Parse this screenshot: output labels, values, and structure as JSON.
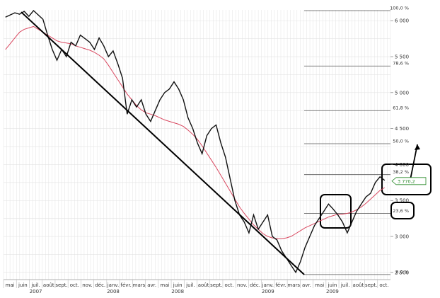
{
  "chart_data": {
    "type": "line",
    "title": "",
    "xlabel": "",
    "ylabel": "",
    "ylim": [
      2400,
      6150
    ],
    "grid": true,
    "colors": {
      "price": "#111111",
      "moving_average": "#d9475f",
      "fib_lines": "#555555",
      "trendline": "#000000",
      "grid": "#e3e3e3",
      "current_price_label": "#2a8a2a",
      "boxes": "#000000"
    },
    "x_labels": [
      "mai",
      "juin",
      "juil.",
      "août",
      "sept.",
      "oct.",
      "nov.",
      "déc.",
      "janv.",
      "févr.",
      "mars",
      "avr.",
      "mai",
      "juin",
      "juil.",
      "août",
      "sept.",
      "oct.",
      "nov.",
      "déc.",
      "janv.",
      "févr.",
      "mars",
      "avr.",
      "mai",
      "juin",
      "juil.",
      "août",
      "sept.",
      "oct."
    ],
    "year_labels": [
      "2007",
      "2008",
      "2008",
      "2009",
      "2009"
    ],
    "y_ticks": [
      {
        "value": 6000,
        "label": "6 000"
      },
      {
        "value": 5500,
        "label": "5 500"
      },
      {
        "value": 5000,
        "label": "5 000"
      },
      {
        "value": 4500,
        "label": "4 500"
      },
      {
        "value": 4000,
        "label": "4 000"
      },
      {
        "value": 3500,
        "label": "3 500"
      },
      {
        "value": 3000,
        "label": "3 000"
      },
      {
        "value": 2500,
        "label": "2 500"
      }
    ],
    "fib_levels": [
      {
        "value": 6140,
        "label": "100,0 %"
      },
      {
        "value": 5370,
        "label": "78,6 %"
      },
      {
        "value": 4750,
        "label": "61,8 %"
      },
      {
        "value": 4290,
        "label": "50,0 %"
      },
      {
        "value": 3860,
        "label": "38,2 %"
      },
      {
        "value": 3320,
        "label": "23,6 %"
      },
      {
        "value": 2470,
        "label": "0,0 %"
      }
    ],
    "current_price_label": "3 770,2",
    "series": [
      {
        "values": [
          6050,
          6080,
          6110,
          6090,
          6130,
          6060,
          6140,
          6080,
          6020,
          5800,
          5600,
          5450,
          5600,
          5500,
          5700,
          5650,
          5800,
          5750,
          5700,
          5600,
          5760,
          5650,
          5500,
          5580,
          5400,
          5200,
          4700,
          4900,
          4800,
          4900,
          4700,
          4600,
          4750,
          4900,
          5000,
          5050,
          5150,
          5050,
          4900,
          4650,
          4500,
          4300,
          4150,
          4400,
          4500,
          4550,
          4300,
          4100,
          3800,
          3500,
          3300,
          3200,
          3050,
          3300,
          3100,
          3200,
          3300,
          3000,
          2950,
          2800,
          2700,
          2600,
          2500,
          2650,
          2850,
          3000,
          3150,
          3250,
          3350,
          3450,
          3380,
          3300,
          3200,
          3050,
          3200,
          3350,
          3450,
          3550,
          3600,
          3750,
          3830,
          3780
        ]
      },
      {
        "values": [
          5600,
          5680,
          5760,
          5840,
          5880,
          5900,
          5920,
          5880,
          5840,
          5800,
          5760,
          5720,
          5700,
          5690,
          5680,
          5650,
          5630,
          5610,
          5590,
          5560,
          5520,
          5470,
          5380,
          5280,
          5180,
          5080,
          4980,
          4900,
          4820,
          4760,
          4720,
          4700,
          4680,
          4650,
          4620,
          4600,
          4580,
          4560,
          4530,
          4480,
          4420,
          4350,
          4260,
          4160,
          4060,
          3960,
          3850,
          3740,
          3630,
          3520,
          3410,
          3320,
          3240,
          3160,
          3100,
          3040,
          3000,
          2980,
          2970,
          2970,
          2980,
          3000,
          3040,
          3080,
          3120,
          3150,
          3180,
          3210,
          3240,
          3270,
          3290,
          3310,
          3310,
          3320,
          3340,
          3370,
          3410,
          3460,
          3520,
          3580,
          3640,
          3680
        ]
      }
    ],
    "trendline": {
      "from": 6120,
      "to": 2470
    },
    "arrow": {
      "from": 3790,
      "to": 4280
    }
  }
}
